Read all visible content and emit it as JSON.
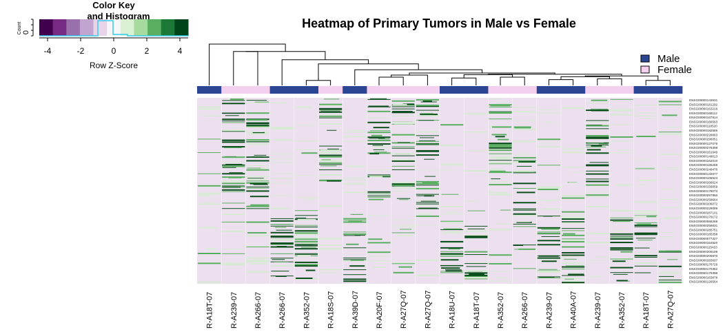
{
  "chart_data": {
    "type": "heatmap",
    "title": "Heatmap of Primary Tumors in Male vs Female",
    "color_key": {
      "title_line1": "Color Key",
      "title_line2": "and Histogram",
      "ylabel": "Count",
      "y_tick_zero": "0",
      "xlabel": "Row Z-Score",
      "ticks": [
        "-4",
        "-2",
        "0",
        "2",
        "4"
      ],
      "range": [
        -4.5,
        4.5
      ],
      "colors": [
        "#40004b",
        "#762a83",
        "#9970ab",
        "#c2a5cf",
        "#e7d4e8",
        "#f7f7f7",
        "#d9f0d3",
        "#a6dba0",
        "#5aae61",
        "#1b7837",
        "#00441b"
      ]
    },
    "legend": {
      "placement": "top-right",
      "entries": [
        {
          "label": "Male",
          "color": "#2b4592"
        },
        {
          "label": "Female",
          "color": "#f2d0ee"
        }
      ]
    },
    "heatmap_colors": {
      "background": "#ece0ee",
      "light": "#d7ead3",
      "mid": "#5aae61",
      "dark": "#0b4f1c",
      "column_separator": "#ffffff"
    },
    "columns": [
      {
        "label": "R-A18T-07",
        "sex": "Male"
      },
      {
        "label": "R-A239-07",
        "sex": "Female"
      },
      {
        "label": "R-A266-07",
        "sex": "Female"
      },
      {
        "label": "R-A266-07",
        "sex": "Male"
      },
      {
        "label": "R-A352-07",
        "sex": "Male"
      },
      {
        "label": "R-A18S-07",
        "sex": "Female"
      },
      {
        "label": "R-A39D-07",
        "sex": "Male"
      },
      {
        "label": "R-A20F-07",
        "sex": "Female"
      },
      {
        "label": "R-A27Q-07",
        "sex": "Female"
      },
      {
        "label": "R-A27Q-07",
        "sex": "Female"
      },
      {
        "label": "R-A18U-07",
        "sex": "Male"
      },
      {
        "label": "R-A18T-07",
        "sex": "Male"
      },
      {
        "label": "R-A352-07",
        "sex": "Female"
      },
      {
        "label": "R-A266-07",
        "sex": "Female"
      },
      {
        "label": "R-A239-07",
        "sex": "Male"
      },
      {
        "label": "R-A40A-07",
        "sex": "Male"
      },
      {
        "label": "R-A239-07",
        "sex": "Female"
      },
      {
        "label": "R-A352-07",
        "sex": "Female"
      },
      {
        "label": "R-A18T-07",
        "sex": "Male"
      },
      {
        "label": "R-A27Q-07",
        "sex": "Male"
      }
    ],
    "row_labels": [
      "ENSG00000143631",
      "ENSG00000181292",
      "ENSG00000163216",
      "ENSG00000168112",
      "ENSG00000167914",
      "ENSG00000166563",
      "ENSG00000118520",
      "ENSG00000182585",
      "ENSG00000228863",
      "ENSG00000296051",
      "ENSG00000137076",
      "ENSG00000276398",
      "ENSG00000161649",
      "ENSG00000149013",
      "ENSG00000162010",
      "ENSG00000165269",
      "ENSG00000249476",
      "ENSG00000132677",
      "ENSG00000105523",
      "ENSG00000266624",
      "ENSG00000156659",
      "ENSG00000178073",
      "ENSG00000287860",
      "ENSG00000258664",
      "ENSG00000206072",
      "ENSG00000229089",
      "ENSG00000287101",
      "ENSG00000179172",
      "ENSG00000068268",
      "ENSG00000258631",
      "ENSG00000285751",
      "ENSG00000185358",
      "ENSG00000077327",
      "ENSG00000154620",
      "ENSG00000115423",
      "ENSG00000206199",
      "ENSG00000206970",
      "ENSG00000283607",
      "ENSG00000176726",
      "ENSG00000170352",
      "ENSG00000179398",
      "ENSG00000163878",
      "ENSG00000126564"
    ],
    "cluster_bands": [
      [
        0.0,
        0.0
      ],
      [
        0.0,
        0.6
      ],
      [
        0.0,
        0.62
      ],
      [
        0.6,
        0.99
      ],
      [
        0.62,
        0.99
      ],
      [
        0.0,
        0.45
      ],
      [
        0.62,
        0.99
      ],
      [
        0.0,
        0.55
      ],
      [
        0.0,
        0.58
      ],
      [
        0.0,
        0.6
      ],
      [
        0.62,
        0.96
      ],
      [
        0.68,
        0.99
      ],
      [
        0.0,
        0.5
      ],
      [
        0.3,
        0.8
      ],
      [
        0.62,
        0.99
      ],
      [
        0.62,
        0.99
      ],
      [
        0.0,
        0.45
      ],
      [
        0.6,
        0.99
      ],
      [
        0.62,
        0.99
      ],
      [
        0.82,
        0.99
      ]
    ],
    "dendrogram_merges": [
      {
        "a": 0,
        "b": "g1",
        "height": 1.0
      },
      {
        "a": 1,
        "b": 2,
        "height": 0.82
      },
      {
        "a": "c1",
        "b": "g2",
        "height": 0.9
      },
      {
        "a": 3,
        "b": "g3",
        "height": 0.6
      },
      {
        "a": 4,
        "b": 5,
        "height": 0.12
      },
      {
        "a": "c4",
        "b": "g4",
        "height": 0.55
      },
      {
        "a": 6,
        "b": "g5",
        "height": 0.5
      },
      {
        "a": 7,
        "b": 8,
        "height": 0.2
      },
      {
        "a": "c7",
        "b": 9,
        "height": 0.25
      },
      {
        "a": "c8",
        "b": "g6",
        "height": 0.3
      },
      {
        "a": 10,
        "b": 11,
        "height": 0.18
      },
      {
        "a": 12,
        "b": 13,
        "height": 0.2
      },
      {
        "a": "c10",
        "b": "c11",
        "height": 0.26
      },
      {
        "a": 14,
        "b": 15,
        "height": 0.14
      },
      {
        "a": 16,
        "b": 17,
        "height": 0.16
      },
      {
        "a": "c13",
        "b": "c14",
        "height": 0.21
      },
      {
        "a": 18,
        "b": 19,
        "height": 0.12
      },
      {
        "a": "c15",
        "b": "c16",
        "height": 0.23
      },
      {
        "a": "c12",
        "b": "c17",
        "height": 0.27
      }
    ]
  }
}
